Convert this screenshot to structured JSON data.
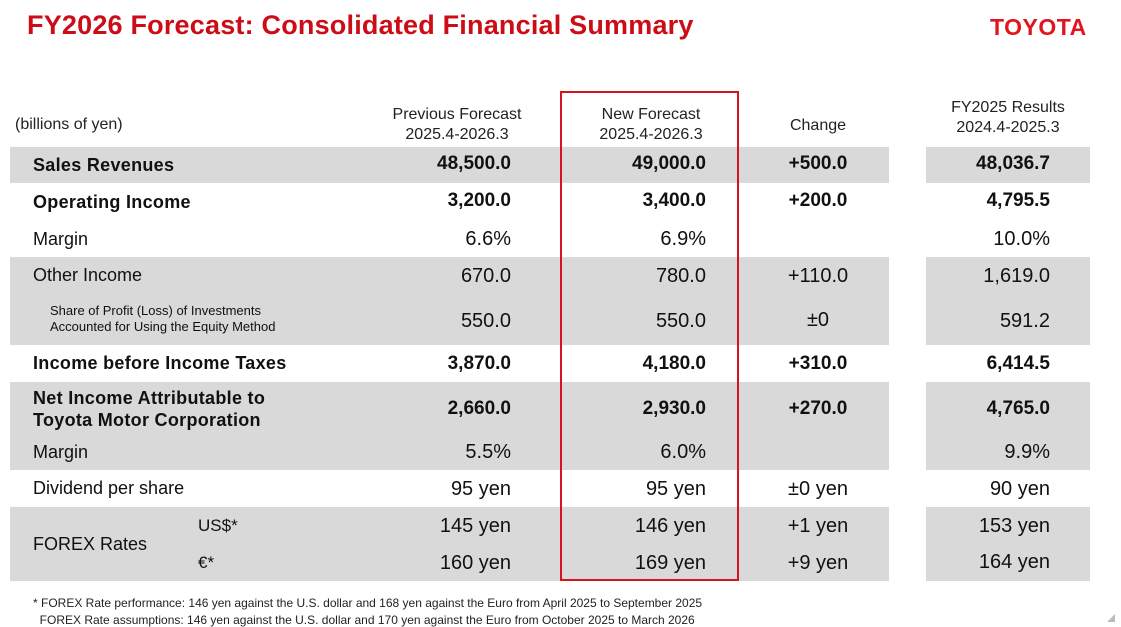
{
  "title": "FY2026 Forecast: Consolidated Financial Summary",
  "logo": "TOYOTA",
  "unit_label": "(billions of yen)",
  "headers": {
    "previous": [
      "Previous Forecast",
      "2025.4-2026.3"
    ],
    "new": [
      "New Forecast",
      "2025.4-2026.3"
    ],
    "change": "Change",
    "fy2025": [
      "FY2025 Results",
      "2024.4-2025.3"
    ]
  },
  "rows": {
    "sales": {
      "label": "Sales Revenues",
      "prev": "48,500.0",
      "new": "49,000.0",
      "change": "+500.0",
      "fy2025": "48,036.7"
    },
    "op_income": {
      "label": "Operating Income",
      "prev": "3,200.0",
      "new": "3,400.0",
      "change": "+200.0",
      "fy2025": "4,795.5"
    },
    "op_margin": {
      "label": "Margin",
      "prev": "6.6%",
      "new": "6.9%",
      "change": "",
      "fy2025": "10.0%"
    },
    "other_income": {
      "label": "Other Income",
      "prev": "670.0",
      "new": "780.0",
      "change": "+110.0",
      "fy2025": "1,619.0"
    },
    "equity_method": {
      "label": [
        "Share of Profit (Loss) of Investments",
        "Accounted for Using the Equity Method"
      ],
      "prev": "550.0",
      "new": "550.0",
      "change": "±0",
      "fy2025": "591.2"
    },
    "pretax": {
      "label": "Income before Income Taxes",
      "prev": "3,870.0",
      "new": "4,180.0",
      "change": "+310.0",
      "fy2025": "6,414.5"
    },
    "net_income": {
      "label": [
        "Net Income Attributable to",
        "Toyota Motor Corporation"
      ],
      "prev": "2,660.0",
      "new": "2,930.0",
      "change": "+270.0",
      "fy2025": "4,765.0"
    },
    "net_margin": {
      "label": "Margin",
      "prev": "5.5%",
      "new": "6.0%",
      "change": "",
      "fy2025": "9.9%"
    },
    "dividend": {
      "label": "Dividend per share",
      "prev": "95 yen",
      "new": "95 yen",
      "change": "±0 yen",
      "fy2025": "90 yen"
    },
    "forex_label": "FOREX Rates",
    "usd": {
      "label": "US$*",
      "prev": "145 yen",
      "new": "146 yen",
      "change": "+1 yen",
      "fy2025": "153 yen"
    },
    "eur": {
      "label": "€*",
      "prev": "160 yen",
      "new": "169 yen",
      "change": "+9 yen",
      "fy2025": "164 yen"
    }
  },
  "footnotes": [
    "* FOREX Rate performance: 146 yen against the U.S. dollar and 168 yen against the Euro from April 2025 to September 2025",
    "  FOREX Rate assumptions: 146 yen against the U.S. dollar and 170 yen against the Euro from October 2025 to March 2026"
  ],
  "colors": {
    "title_red": "#cc0d17",
    "logo_red": "#e1141f",
    "band_gray": "#d9d9d9",
    "highlight_border": "#d6141c"
  }
}
